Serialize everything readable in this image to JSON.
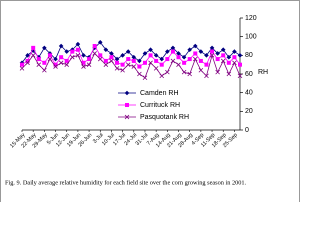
{
  "chart_data": {
    "type": "line",
    "y_label": "RH",
    "caption": "Fig. 9.  Daily average relative humidity for each field site over the corn growing season in 2001.",
    "categories": [
      "15-May",
      null,
      "22-May",
      null,
      "29-May",
      null,
      "5-Jun",
      null,
      "12-Jun",
      null,
      "19-Jun",
      null,
      "26-Jun",
      null,
      "3-Jul",
      null,
      "10-Jul",
      null,
      "17-Jul",
      null,
      "24-Jul",
      null,
      "31-Jul",
      null,
      "7-Aug",
      null,
      "14-Aug",
      null,
      "21-Aug",
      null,
      "28-Aug",
      null,
      "4-Sep",
      null,
      "11-Sep",
      null,
      "18-Sep",
      null,
      "25-Sep",
      null
    ],
    "series": [
      {
        "name": "Camden RH",
        "color": "#000080",
        "marker": "diamond",
        "values": [
          72,
          80,
          85,
          78,
          88,
          82,
          76,
          90,
          84,
          86,
          92,
          80,
          78,
          88,
          94,
          86,
          82,
          76,
          80,
          84,
          78,
          74,
          82,
          86,
          80,
          76,
          84,
          88,
          82,
          78,
          86,
          90,
          84,
          80,
          88,
          82,
          86,
          78,
          84,
          80
        ]
      },
      {
        "name": "Currituck RH",
        "color": "#ff00ff",
        "marker": "square",
        "values": [
          70,
          74,
          88,
          76,
          72,
          80,
          70,
          78,
          74,
          84,
          86,
          72,
          76,
          90,
          80,
          74,
          78,
          72,
          70,
          76,
          74,
          68,
          72,
          80,
          74,
          70,
          76,
          84,
          78,
          72,
          76,
          82,
          74,
          70,
          84,
          76,
          80,
          72,
          78,
          70
        ]
      },
      {
        "name": "Pasquotank RH",
        "color": "#800080",
        "marker": "x",
        "values": [
          66,
          72,
          80,
          70,
          64,
          76,
          68,
          72,
          70,
          78,
          80,
          68,
          70,
          82,
          76,
          70,
          74,
          66,
          64,
          70,
          68,
          60,
          56,
          72,
          66,
          58,
          62,
          74,
          70,
          62,
          60,
          76,
          64,
          58,
          80,
          62,
          74,
          60,
          72,
          58
        ]
      }
    ],
    "ylim": [
      0,
      120
    ],
    "yticks": [
      0,
      20,
      40,
      60,
      80,
      100,
      120
    ],
    "y_axis_side": "right",
    "grid": false
  }
}
